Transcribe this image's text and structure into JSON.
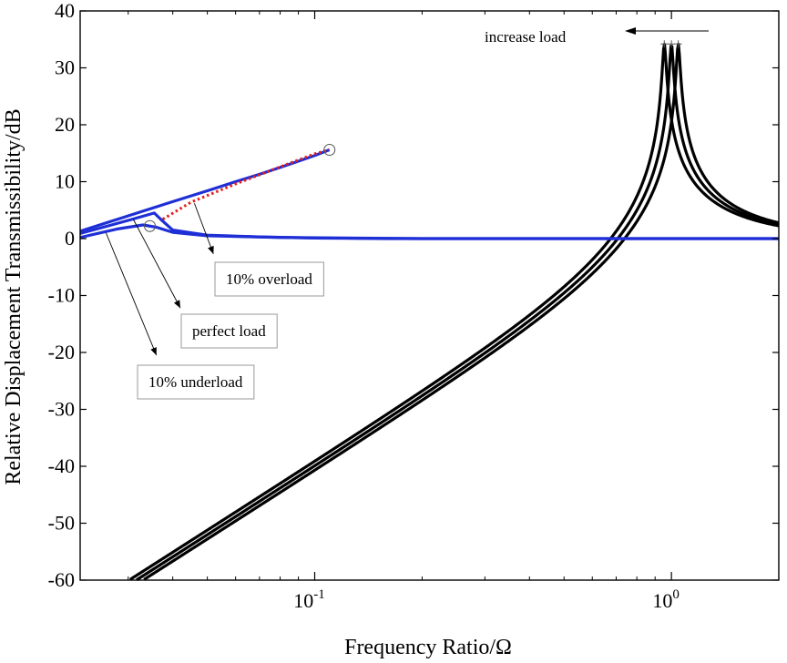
{
  "chart_data": {
    "type": "line",
    "title": "",
    "xlabel": "Frequency Ratio/Ω",
    "ylabel": "Relative Displacement Transmissibility/dB",
    "xscale": "log",
    "xlim": [
      0.022,
      2.0
    ],
    "ylim": [
      -60,
      40
    ],
    "yticks": [
      40,
      30,
      20,
      10,
      0,
      -10,
      -20,
      -30,
      -40,
      -50,
      -60
    ],
    "xticks": [
      {
        "value": 0.1,
        "base": "10",
        "exp": "-1"
      },
      {
        "value": 1.0,
        "base": "10",
        "exp": "0"
      }
    ],
    "grid": false,
    "legend": "none",
    "colors": {
      "resonance_curves": "#000000",
      "low_frequency_curves": "#1f2fd6",
      "jump_path": "#e02020"
    },
    "resonance_series": [
      {
        "resonance_peak": [
          0.955,
          34.2
        ]
      },
      {
        "resonance_peak": [
          1.0,
          34.2
        ]
      },
      {
        "resonance_peak": [
          1.045,
          34.2
        ]
      }
    ],
    "low_frequency_series": [
      {
        "x": [
          0.022,
          0.03,
          0.04,
          0.05,
          0.06,
          0.07,
          0.08,
          0.09,
          0.1,
          0.11
        ],
        "y": [
          1.3,
          4.0,
          6.5,
          8.4,
          10.0,
          11.3,
          12.5,
          13.6,
          14.6,
          15.6
        ]
      },
      {
        "x": [
          0.022,
          0.03,
          0.0355,
          0.037,
          0.04,
          0.05,
          0.07,
          0.1,
          0.16,
          2.0
        ],
        "y": [
          0.9,
          3.2,
          4.5,
          3.4,
          1.5,
          0.6,
          0.3,
          0.1,
          0.0,
          0.0
        ]
      },
      {
        "x": [
          0.022,
          0.028,
          0.033,
          0.036,
          0.04,
          0.05,
          0.08,
          0.2,
          2.0
        ],
        "y": [
          0.2,
          1.7,
          2.4,
          2.0,
          1.1,
          0.5,
          0.2,
          0.0,
          0.0
        ]
      }
    ],
    "jump_path": {
      "x": [
        0.0375,
        0.045,
        0.06,
        0.08,
        0.1,
        0.11
      ],
      "y": [
        3.4,
        6.4,
        9.6,
        12.6,
        14.9,
        15.6
      ]
    },
    "markers": [
      {
        "x": 0.11,
        "y": 15.6
      },
      {
        "x": 0.0345,
        "y": 2.2
      }
    ],
    "annotations": {
      "increase_load": "increase load",
      "overload": "10% overload",
      "perfect": "perfect load",
      "underload": "10% underload"
    }
  }
}
